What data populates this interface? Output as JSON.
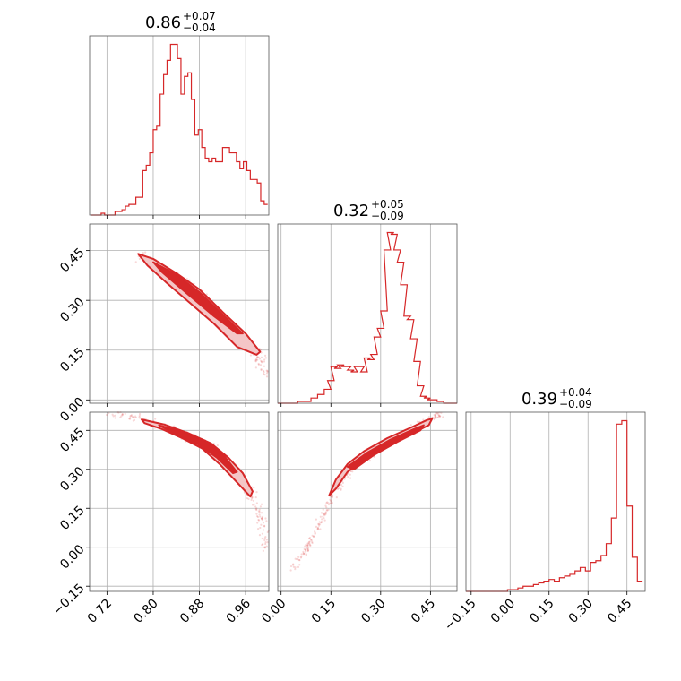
{
  "chart_data": {
    "type": "corner",
    "colors": {
      "series": "#d62728",
      "fill": "#f4c6c7",
      "grid": "#b0b0b0",
      "frame": "#555555"
    },
    "parameters": [
      {
        "title_value": "0.86",
        "title_plus": "+0.07",
        "title_minus": "−0.04",
        "range": [
          0.69,
          1.0
        ],
        "ticks": [
          0.72,
          0.8,
          0.88,
          0.96
        ],
        "tick_labels": [
          "0.72",
          "0.80",
          "0.88",
          "0.96"
        ],
        "hist": {
          "x": [
            0.695,
            0.701,
            0.707,
            0.713,
            0.719,
            0.725,
            0.731,
            0.737,
            0.743,
            0.749,
            0.755,
            0.761,
            0.767,
            0.773,
            0.779,
            0.785,
            0.791,
            0.797,
            0.803,
            0.809,
            0.815,
            0.821,
            0.827,
            0.833,
            0.839,
            0.845,
            0.851,
            0.857,
            0.863,
            0.869,
            0.875,
            0.881,
            0.887,
            0.893,
            0.899,
            0.905,
            0.911,
            0.917,
            0.923,
            0.929,
            0.935,
            0.941,
            0.947,
            0.953,
            0.959,
            0.965,
            0.971,
            0.977,
            0.983,
            0.989,
            0.995
          ],
          "y": [
            0,
            0,
            0,
            0.01,
            0,
            0,
            0,
            0.02,
            0.02,
            0.03,
            0.05,
            0.06,
            0.06,
            0.1,
            0.1,
            0.25,
            0.28,
            0.35,
            0.48,
            0.5,
            0.68,
            0.79,
            0.87,
            0.96,
            0.96,
            0.88,
            0.68,
            0.78,
            0.8,
            0.65,
            0.45,
            0.48,
            0.38,
            0.32,
            0.3,
            0.32,
            0.3,
            0.3,
            0.38,
            0.38,
            0.35,
            0.35,
            0.3,
            0.26,
            0.3,
            0.25,
            0.2,
            0.2,
            0.18,
            0.08,
            0.06
          ]
        }
      },
      {
        "title_value": "0.32",
        "title_plus": "+0.05",
        "title_minus": "−0.09",
        "range": [
          -0.01,
          0.53
        ],
        "ticks": [
          0.0,
          0.15,
          0.3,
          0.45
        ],
        "tick_labels": [
          "0.00",
          "0.15",
          "0.30",
          "0.45"
        ],
        "hist": {
          "x": [
            0.0,
            0.02,
            0.04,
            0.06,
            0.08,
            0.1,
            0.12,
            0.14,
            0.15,
            0.16,
            0.17,
            0.18,
            0.19,
            0.2,
            0.21,
            0.22,
            0.23,
            0.24,
            0.25,
            0.26,
            0.27,
            0.28,
            0.29,
            0.3,
            0.31,
            0.32,
            0.33,
            0.34,
            0.35,
            0.36,
            0.37,
            0.38,
            0.39,
            0.4,
            0.41,
            0.42,
            0.43,
            0.44,
            0.45,
            0.46,
            0.48,
            0.5,
            0.52
          ],
          "y": [
            0,
            0,
            0,
            0.01,
            0.01,
            0.03,
            0.05,
            0.08,
            0.13,
            0.21,
            0.2,
            0.22,
            0.21,
            0.21,
            0.19,
            0.18,
            0.21,
            0.21,
            0.18,
            0.26,
            0.25,
            0.28,
            0.38,
            0.43,
            0.53,
            0.88,
            0.98,
            0.97,
            0.88,
            0.81,
            0.68,
            0.5,
            0.48,
            0.37,
            0.24,
            0.1,
            0.04,
            0.03,
            0.02,
            0.02,
            0.01,
            0,
            0
          ]
        }
      },
      {
        "title_value": "0.39",
        "title_plus": "+0.04",
        "title_minus": "−0.09",
        "range": [
          -0.17,
          0.52
        ],
        "ticks": [
          -0.15,
          0.0,
          0.15,
          0.3,
          0.45
        ],
        "tick_labels": [
          "−0.15",
          "0.00",
          "0.15",
          "0.30",
          "0.45"
        ],
        "hist": {
          "x": [
            -0.16,
            -0.14,
            -0.12,
            -0.1,
            -0.08,
            -0.06,
            -0.04,
            -0.02,
            0.0,
            0.02,
            0.04,
            0.06,
            0.08,
            0.1,
            0.12,
            0.14,
            0.16,
            0.18,
            0.2,
            0.22,
            0.24,
            0.26,
            0.28,
            0.3,
            0.32,
            0.34,
            0.36,
            0.38,
            0.4,
            0.42,
            0.44,
            0.46,
            0.48,
            0.5
          ],
          "y": [
            0,
            0,
            0,
            0,
            0,
            0,
            0,
            0,
            0.01,
            0.01,
            0.02,
            0.03,
            0.03,
            0.04,
            0.05,
            0.06,
            0.07,
            0.06,
            0.08,
            0.09,
            0.1,
            0.12,
            0.14,
            0.12,
            0.17,
            0.18,
            0.21,
            0.28,
            0.43,
            0.98,
            1.0,
            0.5,
            0.2,
            0.06
          ]
        }
      }
    ],
    "pairs": [
      {
        "row": 1,
        "col": 0,
        "ridge": [
          [
            0.78,
            0.43
          ],
          [
            0.82,
            0.39
          ],
          [
            0.86,
            0.34
          ],
          [
            0.9,
            0.28
          ],
          [
            0.94,
            0.2
          ],
          [
            0.98,
            0.14
          ],
          [
            0.995,
            0.07
          ]
        ],
        "contour_outer": [
          [
            0.774,
            0.44
          ],
          [
            0.8,
            0.425
          ],
          [
            0.84,
            0.382
          ],
          [
            0.88,
            0.333
          ],
          [
            0.92,
            0.265
          ],
          [
            0.96,
            0.2
          ],
          [
            0.985,
            0.145
          ],
          [
            0.979,
            0.136
          ],
          [
            0.945,
            0.16
          ],
          [
            0.905,
            0.23
          ],
          [
            0.865,
            0.29
          ],
          [
            0.825,
            0.35
          ],
          [
            0.79,
            0.405
          ]
        ],
        "contour_inner": [
          [
            0.8,
            0.415
          ],
          [
            0.84,
            0.378
          ],
          [
            0.88,
            0.325
          ],
          [
            0.92,
            0.258
          ],
          [
            0.955,
            0.2
          ],
          [
            0.945,
            0.2
          ],
          [
            0.905,
            0.252
          ],
          [
            0.86,
            0.318
          ],
          [
            0.815,
            0.385
          ]
        ]
      },
      {
        "row": 2,
        "col": 0,
        "ridge": [
          [
            0.72,
            0.52
          ],
          [
            0.78,
            0.49
          ],
          [
            0.84,
            0.45
          ],
          [
            0.88,
            0.41
          ],
          [
            0.92,
            0.35
          ],
          [
            0.95,
            0.28
          ],
          [
            0.97,
            0.2
          ],
          [
            0.99,
            0.1
          ],
          [
            0.995,
            0.0
          ]
        ],
        "contour_outer": [
          [
            0.78,
            0.492
          ],
          [
            0.82,
            0.472
          ],
          [
            0.86,
            0.44
          ],
          [
            0.9,
            0.4
          ],
          [
            0.93,
            0.345
          ],
          [
            0.955,
            0.285
          ],
          [
            0.972,
            0.215
          ],
          [
            0.968,
            0.195
          ],
          [
            0.945,
            0.25
          ],
          [
            0.915,
            0.32
          ],
          [
            0.885,
            0.38
          ],
          [
            0.85,
            0.42
          ],
          [
            0.815,
            0.455
          ],
          [
            0.785,
            0.478
          ]
        ],
        "contour_inner": [
          [
            0.81,
            0.47
          ],
          [
            0.85,
            0.445
          ],
          [
            0.89,
            0.41
          ],
          [
            0.92,
            0.36
          ],
          [
            0.945,
            0.29
          ],
          [
            0.938,
            0.285
          ],
          [
            0.91,
            0.345
          ],
          [
            0.878,
            0.395
          ],
          [
            0.84,
            0.432
          ]
        ]
      },
      {
        "row": 2,
        "col": 1,
        "ridge": [
          [
            0.03,
            -0.1
          ],
          [
            0.08,
            0.0
          ],
          [
            0.12,
            0.1
          ],
          [
            0.15,
            0.19
          ],
          [
            0.2,
            0.28
          ],
          [
            0.28,
            0.37
          ],
          [
            0.36,
            0.43
          ],
          [
            0.44,
            0.49
          ],
          [
            0.48,
            0.51
          ]
        ],
        "contour_outer": [
          [
            0.145,
            0.2
          ],
          [
            0.165,
            0.26
          ],
          [
            0.2,
            0.32
          ],
          [
            0.25,
            0.37
          ],
          [
            0.32,
            0.42
          ],
          [
            0.39,
            0.46
          ],
          [
            0.44,
            0.49
          ],
          [
            0.455,
            0.495
          ],
          [
            0.445,
            0.47
          ],
          [
            0.39,
            0.435
          ],
          [
            0.32,
            0.39
          ],
          [
            0.25,
            0.34
          ],
          [
            0.2,
            0.29
          ],
          [
            0.165,
            0.225
          ]
        ],
        "contour_inner": [
          [
            0.2,
            0.31
          ],
          [
            0.26,
            0.365
          ],
          [
            0.33,
            0.415
          ],
          [
            0.4,
            0.455
          ],
          [
            0.43,
            0.47
          ],
          [
            0.42,
            0.45
          ],
          [
            0.35,
            0.405
          ],
          [
            0.28,
            0.355
          ],
          [
            0.22,
            0.3
          ]
        ]
      }
    ]
  }
}
